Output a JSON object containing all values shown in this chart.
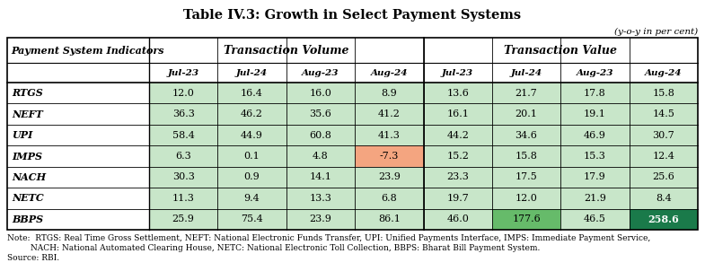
{
  "title": "Table IV.3: Growth in Select Payment Systems",
  "subtitle": "(y-o-y in per cent)",
  "col_header_1": "Payment System Indicators",
  "col_group_1": "Transaction Volume",
  "col_group_2": "Transaction Value",
  "sub_cols": [
    "Jul-23",
    "Jul-24",
    "Aug-23",
    "Aug-24",
    "Jul-23",
    "Jul-24",
    "Aug-23",
    "Aug-24"
  ],
  "rows": [
    {
      "label": "RTGS",
      "vol": [
        12.0,
        16.4,
        16.0,
        8.9
      ],
      "val": [
        13.6,
        21.7,
        17.8,
        15.8
      ]
    },
    {
      "label": "NEFT",
      "vol": [
        36.3,
        46.2,
        35.6,
        41.2
      ],
      "val": [
        16.1,
        20.1,
        19.1,
        14.5
      ]
    },
    {
      "label": "UPI",
      "vol": [
        58.4,
        44.9,
        60.8,
        41.3
      ],
      "val": [
        44.2,
        34.6,
        46.9,
        30.7
      ]
    },
    {
      "label": "IMPS",
      "vol": [
        6.3,
        0.1,
        4.8,
        -7.3
      ],
      "val": [
        15.2,
        15.8,
        15.3,
        12.4
      ]
    },
    {
      "label": "NACH",
      "vol": [
        30.3,
        0.9,
        14.1,
        23.9
      ],
      "val": [
        23.3,
        17.5,
        17.9,
        25.6
      ]
    },
    {
      "label": "NETC",
      "vol": [
        11.3,
        9.4,
        13.3,
        6.8
      ],
      "val": [
        19.7,
        12.0,
        21.9,
        8.4
      ]
    },
    {
      "label": "BBPS",
      "vol": [
        25.9,
        75.4,
        23.9,
        86.1
      ],
      "val": [
        46.0,
        177.6,
        46.5,
        258.6
      ]
    }
  ],
  "note_line1": "Note:  RTGS: Real Time Gross Settlement, NEFT: National Electronic Funds Transfer, UPI: Unified Payments Interface, IMPS: Immediate Payment Service,",
  "note_line2": "         NACH: National Automated Clearing House, NETC: National Electronic Toll Collection, BBPS: Bharat Bill Payment System.",
  "note_line3": "Source: RBI.",
  "light_green": "#c8e6c9",
  "orange_color": "#f4a580",
  "dark_green_color": "#1a7a4a",
  "medium_green": "#66bb6a"
}
